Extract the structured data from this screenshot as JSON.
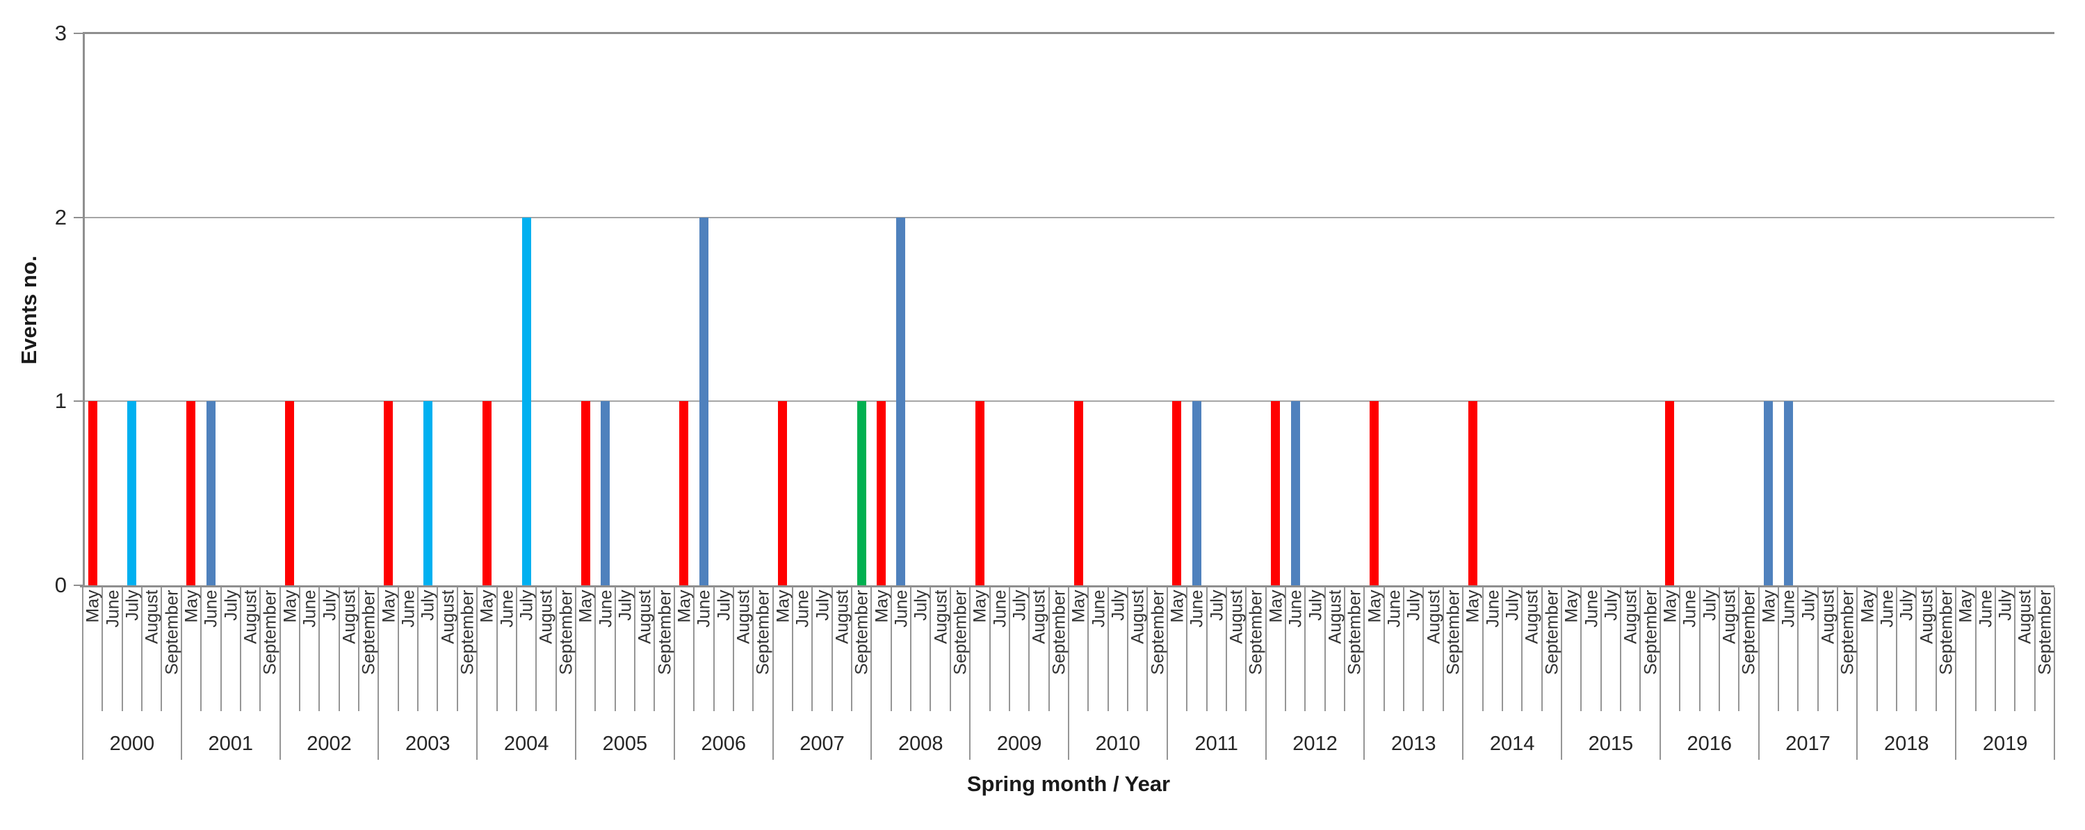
{
  "chart_data": {
    "type": "bar",
    "ylabel": "Events no.",
    "xlabel": "Spring month / Year",
    "ylim": [
      0,
      3
    ],
    "yticks": [
      "0",
      "1",
      "2",
      "3"
    ],
    "grid": "horizontal",
    "legend": "none",
    "months": [
      "May",
      "June",
      "July",
      "August",
      "September"
    ],
    "years": [
      "2000",
      "2001",
      "2002",
      "2003",
      "2004",
      "2005",
      "2006",
      "2007",
      "2008",
      "2009",
      "2010",
      "2011",
      "2012",
      "2013",
      "2014",
      "2015",
      "2016",
      "2017",
      "2018",
      "2019"
    ],
    "colors": {
      "red": "#FF0000",
      "light_blue": "#00B0F0",
      "steel_blue": "#4F81BD",
      "green": "#00B050"
    },
    "bars": [
      {
        "year": "2000",
        "month": "May",
        "value": 1,
        "color": "red"
      },
      {
        "year": "2000",
        "month": "July",
        "value": 1,
        "color": "light_blue"
      },
      {
        "year": "2001",
        "month": "May",
        "value": 1,
        "color": "red"
      },
      {
        "year": "2001",
        "month": "June",
        "value": 1,
        "color": "steel_blue"
      },
      {
        "year": "2002",
        "month": "May",
        "value": 1,
        "color": "red"
      },
      {
        "year": "2003",
        "month": "May",
        "value": 1,
        "color": "red"
      },
      {
        "year": "2003",
        "month": "July",
        "value": 1,
        "color": "light_blue"
      },
      {
        "year": "2004",
        "month": "May",
        "value": 1,
        "color": "red"
      },
      {
        "year": "2004",
        "month": "July",
        "value": 2,
        "color": "light_blue"
      },
      {
        "year": "2005",
        "month": "May",
        "value": 1,
        "color": "red"
      },
      {
        "year": "2005",
        "month": "June",
        "value": 1,
        "color": "steel_blue"
      },
      {
        "year": "2006",
        "month": "May",
        "value": 1,
        "color": "red"
      },
      {
        "year": "2006",
        "month": "June",
        "value": 2,
        "color": "steel_blue"
      },
      {
        "year": "2007",
        "month": "May",
        "value": 1,
        "color": "red"
      },
      {
        "year": "2007",
        "month": "September",
        "value": 1,
        "color": "green"
      },
      {
        "year": "2008",
        "month": "May",
        "value": 1,
        "color": "red"
      },
      {
        "year": "2008",
        "month": "June",
        "value": 2,
        "color": "steel_blue"
      },
      {
        "year": "2009",
        "month": "May",
        "value": 1,
        "color": "red"
      },
      {
        "year": "2010",
        "month": "May",
        "value": 1,
        "color": "red"
      },
      {
        "year": "2011",
        "month": "May",
        "value": 1,
        "color": "red"
      },
      {
        "year": "2011",
        "month": "June",
        "value": 1,
        "color": "steel_blue"
      },
      {
        "year": "2012",
        "month": "May",
        "value": 1,
        "color": "red"
      },
      {
        "year": "2012",
        "month": "June",
        "value": 1,
        "color": "steel_blue"
      },
      {
        "year": "2013",
        "month": "May",
        "value": 1,
        "color": "red"
      },
      {
        "year": "2014",
        "month": "May",
        "value": 1,
        "color": "red"
      },
      {
        "year": "2016",
        "month": "May",
        "value": 1,
        "color": "red"
      },
      {
        "year": "2017",
        "month": "May",
        "value": 1,
        "color": "steel_blue"
      },
      {
        "year": "2017",
        "month": "June",
        "value": 1,
        "color": "steel_blue"
      }
    ]
  }
}
